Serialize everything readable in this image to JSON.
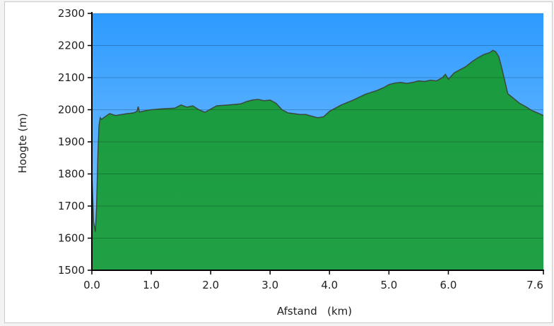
{
  "chart_data": {
    "type": "area",
    "xlabel": "Afstand   (km)",
    "ylabel": "Hoogte (m)",
    "xlim": [
      0,
      7.6
    ],
    "ylim": [
      1500,
      2300
    ],
    "x_ticks": [
      0,
      1,
      2,
      3,
      4,
      5,
      6,
      7.6
    ],
    "x_tick_labels": [
      "0.0",
      "1.0",
      "2.0",
      "3.0",
      "4.0",
      "5.0",
      "6.0",
      "7.6"
    ],
    "y_ticks": [
      1500,
      1600,
      1700,
      1800,
      1900,
      2000,
      2100,
      2200,
      2300
    ],
    "y_tick_labels": [
      "1500",
      "1600",
      "1700",
      "1800",
      "1900",
      "2000",
      "2100",
      "2200",
      "2300"
    ],
    "grid": true,
    "colors": {
      "sky": "#3aa0ff",
      "fill": "#1f9a40",
      "line": "#3a4a3a"
    },
    "series": [
      {
        "x": [
          0,
          0.03,
          0.06,
          0.08,
          0.1,
          0.12,
          0.14,
          0.16,
          0.2,
          0.3,
          0.4,
          0.5,
          0.6,
          0.7,
          0.76,
          0.78,
          0.8,
          0.9,
          1.0,
          1.2,
          1.4,
          1.5,
          1.6,
          1.7,
          1.8,
          1.9,
          2.0,
          2.1,
          2.3,
          2.5,
          2.6,
          2.7,
          2.8,
          2.9,
          3.0,
          3.1,
          3.2,
          3.3,
          3.4,
          3.5,
          3.6,
          3.7,
          3.8,
          3.9,
          4.0,
          4.2,
          4.4,
          4.6,
          4.8,
          4.9,
          5.0,
          5.1,
          5.2,
          5.3,
          5.4,
          5.5,
          5.6,
          5.7,
          5.8,
          5.9,
          5.95,
          6.0,
          6.05,
          6.1,
          6.2,
          6.3,
          6.4,
          6.5,
          6.6,
          6.7,
          6.75,
          6.8,
          6.85,
          6.9,
          7.0,
          7.1,
          7.2,
          7.3,
          7.4,
          7.5,
          7.6
        ],
        "y": [
          1800,
          1650,
          1620,
          1700,
          1850,
          1950,
          1975,
          1970,
          1975,
          1988,
          1982,
          1985,
          1988,
          1990,
          1995,
          2010,
          1993,
          1997,
          2000,
          2003,
          2005,
          2015,
          2008,
          2012,
          2000,
          1992,
          2002,
          2012,
          2015,
          2018,
          2025,
          2030,
          2032,
          2028,
          2030,
          2020,
          2000,
          1990,
          1988,
          1985,
          1985,
          1980,
          1975,
          1978,
          1995,
          2015,
          2030,
          2048,
          2060,
          2068,
          2078,
          2083,
          2085,
          2082,
          2085,
          2090,
          2088,
          2092,
          2090,
          2100,
          2110,
          2095,
          2105,
          2115,
          2125,
          2135,
          2150,
          2162,
          2172,
          2178,
          2185,
          2180,
          2165,
          2130,
          2050,
          2035,
          2020,
          2010,
          1998,
          1990,
          1982
        ]
      }
    ]
  }
}
